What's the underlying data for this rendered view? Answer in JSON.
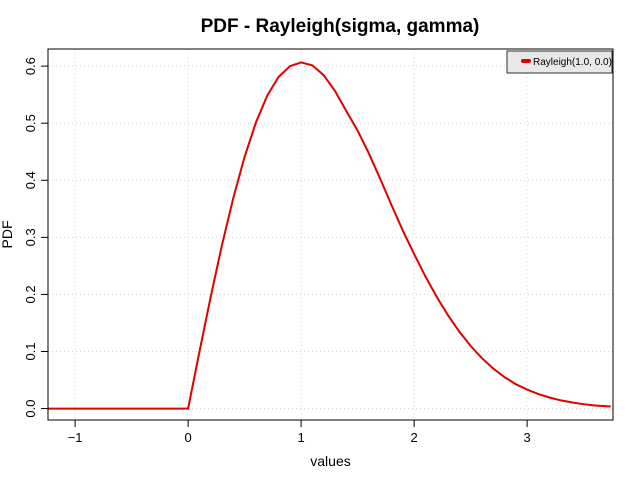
{
  "chart_data": {
    "type": "line",
    "title": "PDF - Rayleigh(sigma, gamma)",
    "xlabel": "values",
    "ylabel": "PDF",
    "xlim": [
      -1.24,
      3.76
    ],
    "ylim": [
      -0.02,
      0.63
    ],
    "x_ticks": [
      -1,
      0,
      1,
      2,
      3
    ],
    "x_tick_labels": [
      "−1",
      "0",
      "1",
      "2",
      "3"
    ],
    "y_ticks": [
      0.0,
      0.1,
      0.2,
      0.3,
      0.4,
      0.5,
      0.6
    ],
    "y_tick_labels": [
      "0.0",
      "0.1",
      "0.2",
      "0.3",
      "0.4",
      "0.5",
      "0.6"
    ],
    "grid": true,
    "legend_position": "top-right",
    "series": [
      {
        "name": "Rayleigh(1.0, 0.0)",
        "color": "#e00000",
        "x": [
          -1.24,
          -1.0,
          -0.75,
          -0.5,
          -0.25,
          0.0,
          0.05,
          0.1,
          0.2,
          0.3,
          0.4,
          0.5,
          0.6,
          0.7,
          0.8,
          0.9,
          1.0,
          1.1,
          1.2,
          1.3,
          1.4,
          1.5,
          1.6,
          1.7,
          1.8,
          1.9,
          2.0,
          2.1,
          2.2,
          2.3,
          2.4,
          2.5,
          2.6,
          2.7,
          2.8,
          2.9,
          3.0,
          3.1,
          3.2,
          3.3,
          3.4,
          3.5,
          3.6,
          3.74
        ],
        "y": [
          0,
          0,
          0,
          0,
          0,
          0,
          0.05,
          0.0995,
          0.196,
          0.2869,
          0.3692,
          0.4412,
          0.5012,
          0.5481,
          0.5809,
          0.5998,
          0.6065,
          0.6013,
          0.5841,
          0.5564,
          0.5214,
          0.487,
          0.4468,
          0.4024,
          0.3565,
          0.3119,
          0.2707,
          0.2316,
          0.1957,
          0.1634,
          0.1348,
          0.1098,
          0.0883,
          0.0702,
          0.0551,
          0.0427,
          0.0333,
          0.0254,
          0.0192,
          0.0143,
          0.0106,
          0.0077,
          0.0055,
          0.0036
        ]
      }
    ]
  }
}
